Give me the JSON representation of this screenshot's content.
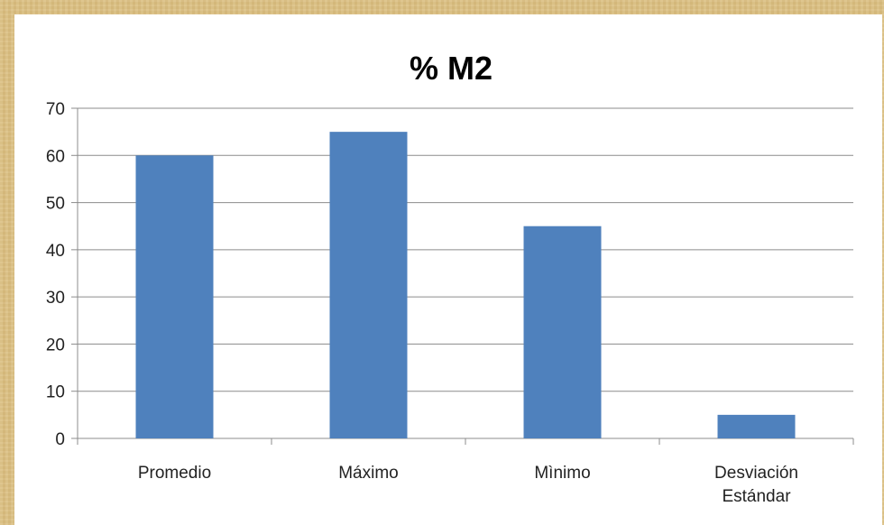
{
  "chart_data": {
    "type": "bar",
    "title": "% M2",
    "categories": [
      [
        "Promedio"
      ],
      [
        "Máximo"
      ],
      [
        "Mìnimo"
      ],
      [
        "Desviación",
        "Estándar"
      ]
    ],
    "series": [
      {
        "values": [
          60,
          65,
          45,
          5
        ],
        "color": "#4f81bd"
      }
    ],
    "ylim": [
      0,
      70
    ],
    "yticks": [
      0,
      10,
      20,
      30,
      40,
      50,
      60,
      70
    ],
    "grid": true,
    "legend": "none"
  }
}
